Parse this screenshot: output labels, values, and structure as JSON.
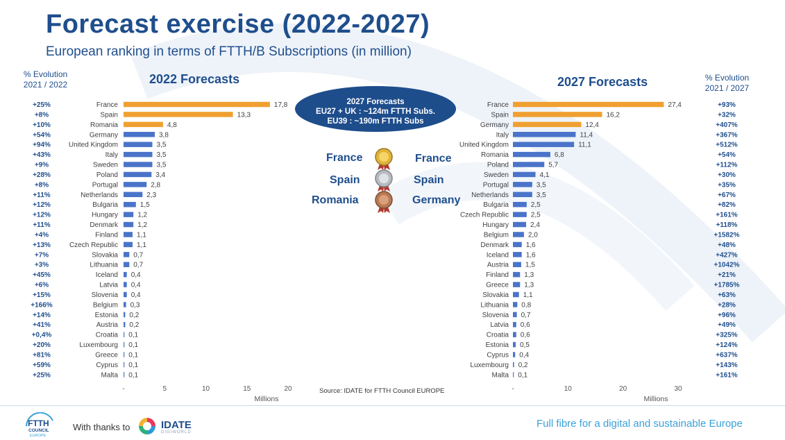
{
  "header": {
    "title": "Forecast exercise (2022-2027)",
    "subtitle": "European ranking in terms of FTTH/B Subscriptions (in million)"
  },
  "left_evolution_header": {
    "line1": "% Evolution",
    "line2": "2021 / 2022"
  },
  "right_evolution_header": {
    "line1": "% Evolution",
    "line2": "2021 / 2027"
  },
  "bubble": {
    "line1": "2027 Forecasts",
    "line2": "EU27 + UK : ~124m FTTH Subs.",
    "line3": "EU39 : ~190m FTTH Subs"
  },
  "ranking": {
    "left": [
      "France",
      "Spain",
      "Romania"
    ],
    "right": [
      "France",
      "Spain",
      "Germany"
    ],
    "medals": [
      "gold-medal-icon",
      "silver-medal-icon",
      "bronze-medal-icon"
    ]
  },
  "colors": {
    "highlight": "#f0a030",
    "bar": "#4a74c9",
    "title": "#1f4e8c",
    "evolution": "#1f4e8c"
  },
  "source": "Source: IDATE for FTTH Council EUROPE",
  "footer": {
    "ftth_logo": {
      "line1": "FTTH",
      "line2": "COUNCIL",
      "line3": "EUROPE"
    },
    "thanks": "With thanks to",
    "idate": "IDATE",
    "idate_sub": "DIGIWORLD",
    "tagline": "Full fibre for a digital and sustainable Europe"
  },
  "chart_data": [
    {
      "type": "bar",
      "orientation": "horizontal",
      "title": "2022 Forecasts",
      "xlabel": "Millions",
      "xlim": [
        0,
        20
      ],
      "xticks": [
        "-",
        "5",
        "10",
        "15",
        "20"
      ],
      "highlight_count": 3,
      "categories": [
        "France",
        "Spain",
        "Romania",
        "Germany",
        "United Kingdom",
        "Italy",
        "Sweden",
        "Poland",
        "Portugal",
        "Netherlands",
        "Bulgaria",
        "Hungary",
        "Denmark",
        "Finland",
        "Czech Republic",
        "Slovakia",
        "Lithuania",
        "Iceland",
        "Latvia",
        "Slovenia",
        "Belgium",
        "Estonia",
        "Austria",
        "Croatia",
        "Luxembourg",
        "Greece",
        "Cyprus",
        "Malta"
      ],
      "values": [
        17.8,
        13.3,
        4.8,
        3.8,
        3.5,
        3.5,
        3.5,
        3.4,
        2.8,
        2.3,
        1.5,
        1.2,
        1.2,
        1.1,
        1.1,
        0.7,
        0.7,
        0.4,
        0.4,
        0.4,
        0.3,
        0.2,
        0.2,
        0.1,
        0.1,
        0.1,
        0.1,
        0.1
      ],
      "value_labels": [
        "17,8",
        "13,3",
        "4,8",
        "3,8",
        "3,5",
        "3,5",
        "3,5",
        "3,4",
        "2,8",
        "2,3",
        "1,5",
        "1,2",
        "1,2",
        "1,1",
        "1,1",
        "0,7",
        "0,7",
        "0,4",
        "0,4",
        "0,4",
        "0,3",
        "0,2",
        "0,2",
        "0,1",
        "0,1",
        "0,1",
        "0,1",
        "0,1"
      ],
      "evolution": [
        "+25%",
        "+8%",
        "+10%",
        "+54%",
        "+94%",
        "+43%",
        "+9%",
        "+28%",
        "+8%",
        "+11%",
        "+12%",
        "+12%",
        "+11%",
        "+4%",
        "+13%",
        "+7%",
        "+3%",
        "+45%",
        "+6%",
        "+15%",
        "+166%",
        "+14%",
        "+41%",
        "+0,4%",
        "+20%",
        "+81%",
        "+59%",
        "+25%"
      ]
    },
    {
      "type": "bar",
      "orientation": "horizontal",
      "title": "2027 Forecasts",
      "xlabel": "Millions",
      "xlim": [
        0,
        30
      ],
      "xticks": [
        "-",
        "10",
        "20",
        "30"
      ],
      "highlight_count": 3,
      "categories": [
        "France",
        "Spain",
        "Germany",
        "Italy",
        "United Kingdom",
        "Romania",
        "Poland",
        "Sweden",
        "Portugal",
        "Netherlands",
        "Bulgaria",
        "Czech Republic",
        "Hungary",
        "Belgium",
        "Denmark",
        "Iceland",
        "Austria",
        "Finland",
        "Greece",
        "Slovakia",
        "Lithuania",
        "Slovenia",
        "Latvia",
        "Croatia",
        "Estonia",
        "Cyprus",
        "Luxembourg",
        "Malta"
      ],
      "values": [
        27.4,
        16.2,
        12.4,
        11.4,
        11.1,
        6.8,
        5.7,
        4.1,
        3.5,
        3.5,
        2.5,
        2.5,
        2.4,
        2.0,
        1.6,
        1.6,
        1.5,
        1.3,
        1.3,
        1.1,
        0.8,
        0.7,
        0.6,
        0.6,
        0.5,
        0.4,
        0.2,
        0.1
      ],
      "value_labels": [
        "27,4",
        "16,2",
        "12,4",
        "11,4",
        "11,1",
        "6,8",
        "5,7",
        "4,1",
        "3,5",
        "3,5",
        "2,5",
        "2,5",
        "2,4",
        "2,0",
        "1,6",
        "1,6",
        "1,5",
        "1,3",
        "1,3",
        "1,1",
        "0,8",
        "0,7",
        "0,6",
        "0,6",
        "0,5",
        "0,4",
        "0,2",
        "0,1"
      ],
      "evolution": [
        "+93%",
        "+32%",
        "+407%",
        "+367%",
        "+512%",
        "+54%",
        "+112%",
        "+30%",
        "+35%",
        "+67%",
        "+82%",
        "+161%",
        "+118%",
        "+1582%",
        "+48%",
        "+427%",
        "+1042%",
        "+21%",
        "+1785%",
        "+63%",
        "+28%",
        "+96%",
        "+49%",
        "+325%",
        "+124%",
        "+637%",
        "+143%",
        "+161%"
      ]
    }
  ]
}
